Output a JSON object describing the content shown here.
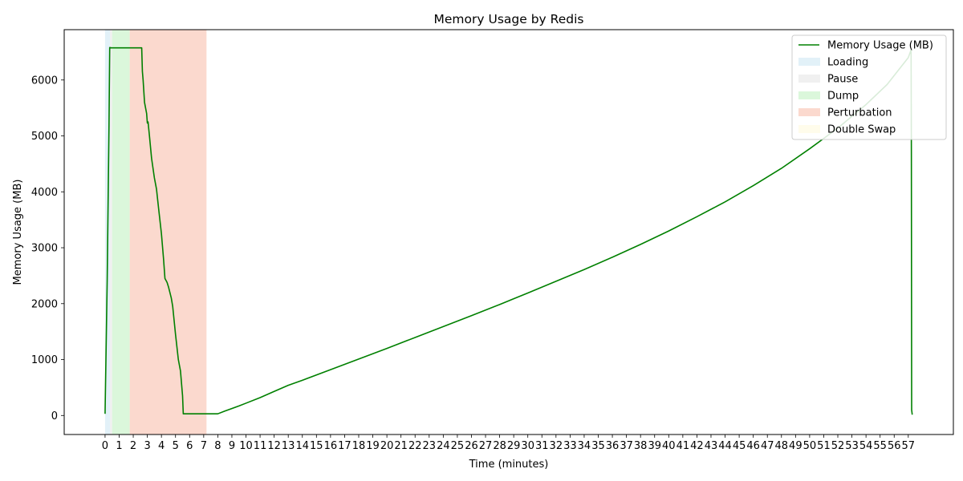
{
  "chart_data": {
    "type": "line",
    "title": "Memory Usage by Redis",
    "xlabel": "Time (minutes)",
    "ylabel": "Memory Usage (MB)",
    "xlim": [
      -2.9,
      60.2
    ],
    "ylim": [
      -340,
      6900
    ],
    "x_ticks": [
      0,
      1,
      2,
      3,
      4,
      5,
      6,
      7,
      8,
      9,
      10,
      11,
      12,
      13,
      14,
      15,
      16,
      17,
      18,
      19,
      20,
      21,
      22,
      23,
      24,
      25,
      26,
      27,
      28,
      29,
      30,
      31,
      32,
      33,
      34,
      35,
      36,
      37,
      38,
      39,
      40,
      41,
      42,
      43,
      44,
      45,
      46,
      47,
      48,
      49,
      50,
      51,
      52,
      53,
      54,
      55,
      56,
      57
    ],
    "x_tick_labels": [
      "0",
      "1",
      "2",
      "3",
      "4",
      "5",
      "6",
      "7",
      "8",
      "9",
      "10",
      "11",
      "12",
      "13",
      "14",
      "15",
      "16",
      "17",
      "18",
      "19",
      "20",
      "21",
      "22",
      "23",
      "24",
      "25",
      "26",
      "27",
      "28",
      "29",
      "30",
      "31",
      "32",
      "33",
      "34",
      "35",
      "36",
      "37",
      "38",
      "39",
      "40",
      "41",
      "42",
      "43",
      "44",
      "45",
      "46",
      "47",
      "48",
      "49",
      "50",
      "51",
      "52",
      "53",
      "54",
      "55",
      "56",
      "57"
    ],
    "y_ticks": [
      0,
      1000,
      2000,
      3000,
      4000,
      5000,
      6000
    ],
    "y_tick_labels": [
      "0",
      "1000",
      "2000",
      "3000",
      "4000",
      "5000",
      "6000"
    ],
    "grid": false,
    "legend_position": "top-right",
    "series": [
      {
        "name": "Memory Usage (MB)",
        "color": "#008000",
        "points": [
          [
            0.0,
            30
          ],
          [
            0.15,
            2400
          ],
          [
            0.28,
            5200
          ],
          [
            0.33,
            6580
          ],
          [
            0.45,
            6575
          ],
          [
            1.0,
            6575
          ],
          [
            2.0,
            6575
          ],
          [
            2.6,
            6575
          ],
          [
            2.62,
            6400
          ],
          [
            2.65,
            6150
          ],
          [
            2.7,
            6000
          ],
          [
            2.8,
            5600
          ],
          [
            2.95,
            5400
          ],
          [
            3.0,
            5230
          ],
          [
            3.05,
            5250
          ],
          [
            3.15,
            5000
          ],
          [
            3.3,
            4600
          ],
          [
            3.5,
            4250
          ],
          [
            3.65,
            4050
          ],
          [
            3.8,
            3700
          ],
          [
            4.0,
            3250
          ],
          [
            4.15,
            2800
          ],
          [
            4.25,
            2450
          ],
          [
            4.4,
            2380
          ],
          [
            4.5,
            2300
          ],
          [
            4.6,
            2200
          ],
          [
            4.7,
            2100
          ],
          [
            4.8,
            1950
          ],
          [
            4.9,
            1700
          ],
          [
            5.0,
            1450
          ],
          [
            5.2,
            1000
          ],
          [
            5.35,
            800
          ],
          [
            5.5,
            350
          ],
          [
            5.55,
            30
          ],
          [
            6.0,
            30
          ],
          [
            7.0,
            30
          ],
          [
            7.8,
            30
          ],
          [
            8.0,
            30
          ],
          [
            8.5,
            80
          ],
          [
            9.5,
            170
          ],
          [
            10.0,
            220
          ],
          [
            11.0,
            320
          ],
          [
            12.0,
            430
          ],
          [
            13.0,
            540
          ],
          [
            14.0,
            630
          ],
          [
            16.0,
            820
          ],
          [
            18.0,
            1010
          ],
          [
            20.0,
            1200
          ],
          [
            22.0,
            1395
          ],
          [
            24.0,
            1590
          ],
          [
            26.0,
            1785
          ],
          [
            28.0,
            1985
          ],
          [
            30.0,
            2190
          ],
          [
            32.0,
            2400
          ],
          [
            34.0,
            2610
          ],
          [
            36.0,
            2830
          ],
          [
            38.0,
            3060
          ],
          [
            40.0,
            3300
          ],
          [
            42.0,
            3555
          ],
          [
            44.0,
            3820
          ],
          [
            46.0,
            4110
          ],
          [
            48.0,
            4420
          ],
          [
            50.0,
            4770
          ],
          [
            52.0,
            5140
          ],
          [
            54.0,
            5560
          ],
          [
            55.5,
            5920
          ],
          [
            57.0,
            6400
          ],
          [
            57.2,
            6540
          ],
          [
            57.22,
            4700
          ],
          [
            57.24,
            100
          ],
          [
            57.28,
            15
          ]
        ]
      }
    ],
    "phases": [
      {
        "name": "Loading",
        "color": "#d6ebf5",
        "start": 0.0,
        "end": 0.35
      },
      {
        "name": "Pause",
        "color": "#e9e9e9",
        "start": 0.35,
        "end": 0.5
      },
      {
        "name": "Dump",
        "color": "#ccf4cc",
        "start": 0.5,
        "end": 1.75
      },
      {
        "name": "Perturbation",
        "color": "#f9c9b9",
        "start": 1.75,
        "end": 7.2
      },
      {
        "name": "Double Swap",
        "color": "#fffbe3",
        "start": 7.2,
        "end": 7.2
      }
    ]
  }
}
